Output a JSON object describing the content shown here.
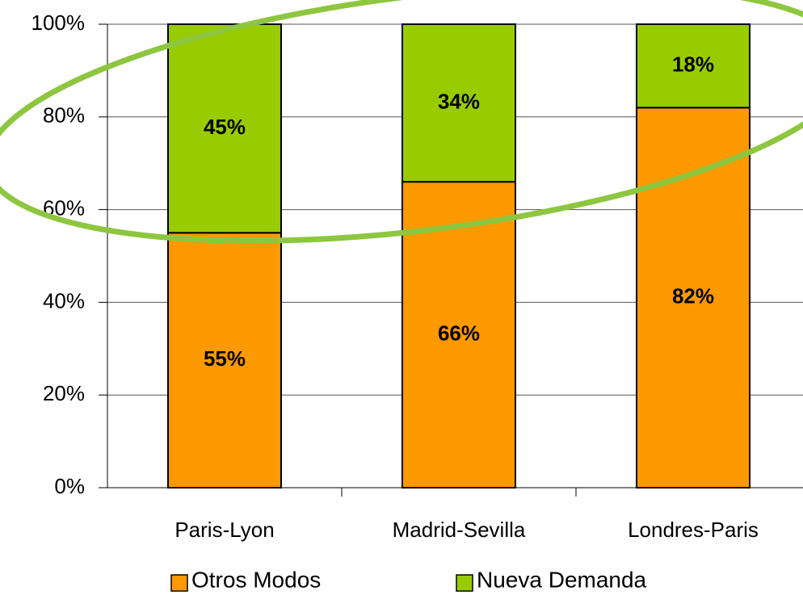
{
  "chart_data": {
    "type": "stacked_bar",
    "categories": [
      "Paris-Lyon",
      "Madrid-Sevilla",
      "Londres-Paris"
    ],
    "series": [
      {
        "name": "Otros Modos",
        "color": "#ff9900",
        "values": [
          55,
          66,
          82
        ],
        "value_labels": [
          "55%",
          "66%",
          "82%"
        ]
      },
      {
        "name": "Nueva Demanda",
        "color": "#99cc00",
        "values": [
          45,
          34,
          18
        ],
        "value_labels": [
          "45%",
          "34%",
          "18%"
        ]
      }
    ],
    "ylim": [
      0,
      100
    ],
    "yticks": [
      {
        "value": 0,
        "label": "0%"
      },
      {
        "value": 20,
        "label": "20%"
      },
      {
        "value": 40,
        "label": "40%"
      },
      {
        "value": 60,
        "label": "60%"
      },
      {
        "value": 80,
        "label": "80%"
      },
      {
        "value": 100,
        "label": "100%"
      }
    ],
    "grid": true
  }
}
